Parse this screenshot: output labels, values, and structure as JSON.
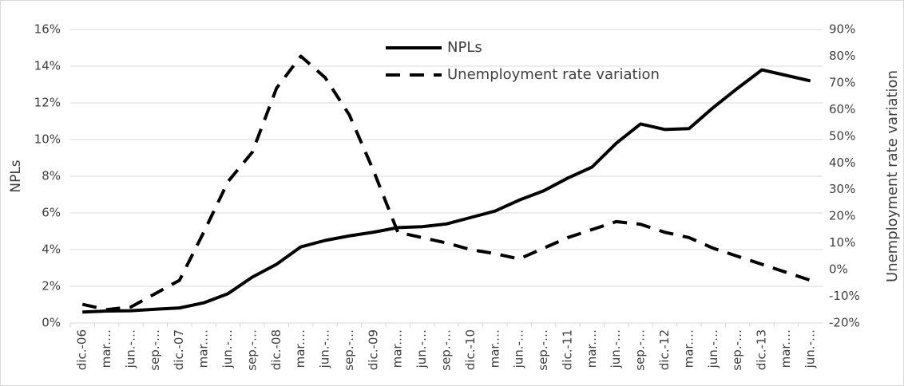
{
  "chart_data": {
    "type": "line",
    "categories": [
      "dic.-06",
      "mar.…",
      "jun.-…",
      "sep.-…",
      "dic.-07",
      "mar.…",
      "jun.-…",
      "sep.-…",
      "dic.-08",
      "mar.…",
      "jun.-…",
      "sep.-…",
      "dic.-09",
      "mar.…",
      "jun.-…",
      "sep.-…",
      "dic.-10",
      "mar.…",
      "jun.-…",
      "sep.-…",
      "dic.-11",
      "mar.…",
      "jun.-…",
      "sep.-…",
      "dic.-12",
      "mar.…",
      "jun.-…",
      "sep.-…",
      "dic.-13",
      "mar.…",
      "jun.-…"
    ],
    "series": [
      {
        "name": "NPLs",
        "color": "#000000",
        "line_style": "solid",
        "values": [
          0.6,
          0.65,
          0.67,
          0.75,
          0.82,
          1.1,
          1.6,
          2.5,
          3.2,
          4.15,
          4.5,
          4.75,
          4.95,
          5.2,
          5.25,
          5.4,
          5.75,
          6.1,
          6.7,
          7.2,
          7.9,
          8.5,
          9.8,
          10.85,
          10.55,
          10.6,
          11.75,
          12.8,
          13.8,
          13.5,
          13.2
        ]
      },
      {
        "name": "Unemployment rate variation",
        "color": "#000000",
        "line_style": "dashed",
        "axis": "y2",
        "values": [
          -13,
          -15,
          -14,
          -9,
          -4,
          14,
          33,
          44,
          68,
          80,
          72,
          58,
          37,
          14,
          12,
          10,
          7.5,
          6,
          4,
          8,
          12,
          15,
          18,
          17,
          14,
          12,
          8,
          5,
          2,
          -1,
          -4
        ]
      }
    ],
    "ylabel": "NPLs",
    "y2label": "Unemployment rate variation",
    "ylim": [
      0,
      16
    ],
    "yticks": [
      {
        "value": 0,
        "label": "0%"
      },
      {
        "value": 2,
        "label": "2%"
      },
      {
        "value": 4,
        "label": "4%"
      },
      {
        "value": 6,
        "label": "6%"
      },
      {
        "value": 8,
        "label": "8%"
      },
      {
        "value": 10,
        "label": "10%"
      },
      {
        "value": 12,
        "label": "12%"
      },
      {
        "value": 14,
        "label": "14%"
      },
      {
        "value": 16,
        "label": "16%"
      }
    ],
    "y2lim": [
      -20,
      90
    ],
    "y2ticks": [
      {
        "value": -20,
        "label": "-20%"
      },
      {
        "value": -10,
        "label": "-10%"
      },
      {
        "value": 0,
        "label": "0%"
      },
      {
        "value": 10,
        "label": "10%"
      },
      {
        "value": 20,
        "label": "20%"
      },
      {
        "value": 30,
        "label": "30%"
      },
      {
        "value": 40,
        "label": "40%"
      },
      {
        "value": 50,
        "label": "50%"
      },
      {
        "value": 60,
        "label": "60%"
      },
      {
        "value": 70,
        "label": "70%"
      },
      {
        "value": 80,
        "label": "80%"
      },
      {
        "value": 90,
        "label": "90%"
      }
    ],
    "grid": true,
    "legend": "top"
  }
}
